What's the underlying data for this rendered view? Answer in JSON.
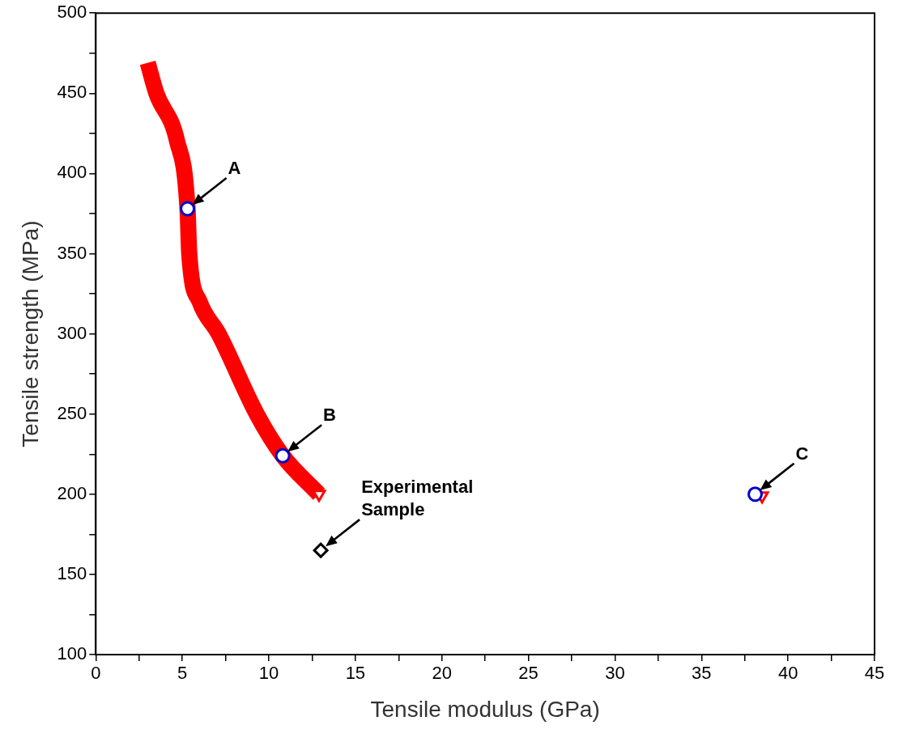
{
  "chart_data": {
    "type": "scatter",
    "xlabel": "Tensile modulus (GPa)",
    "ylabel": "Tensile strength (MPa)",
    "xlim": [
      0,
      45
    ],
    "ylim": [
      100,
      500
    ],
    "xticks": [
      0,
      {
        "value": 2.5,
        "label": null
      },
      5,
      {
        "value": 7.5,
        "label": null
      },
      10,
      {
        "value": 12.5,
        "label": null
      },
      15,
      {
        "value": 17.5,
        "label": null
      },
      20,
      {
        "value": 22.5,
        "label": null
      },
      25,
      {
        "value": 27.5,
        "label": null
      },
      30,
      {
        "value": 32.5,
        "label": null
      },
      35,
      {
        "value": 37.5,
        "label": null
      },
      40,
      {
        "value": 42.5,
        "label": null
      },
      45
    ],
    "yticks": [
      100,
      {
        "value": 125,
        "label": null
      },
      150,
      {
        "value": 175,
        "label": null
      },
      200,
      {
        "value": 225,
        "label": null
      },
      250,
      {
        "value": 275,
        "label": null
      },
      300,
      {
        "value": 325,
        "label": null
      },
      350,
      {
        "value": 375,
        "label": null
      },
      400,
      {
        "value": 425,
        "label": null
      },
      450,
      {
        "value": 475,
        "label": null
      },
      500
    ],
    "grid": false,
    "legend": false,
    "series": [
      {
        "type": "line",
        "color": "#ff0000",
        "marker": "none",
        "x": [
          3.0,
          3.5,
          4.7,
          5.3,
          5.4,
          6.0,
          7.1,
          9.3,
          10.8,
          12.9
        ],
        "values": [
          469,
          450,
          420,
          378,
          350,
          320,
          300,
          250,
          224,
          200
        ]
      },
      {
        "type": "scatter",
        "color": "#ff0000",
        "marker": "triangle",
        "x": [
          12.9,
          38.5
        ],
        "values": [
          200,
          199
        ]
      },
      {
        "type": "scatter",
        "color": "#0000cc",
        "marker": "circle",
        "x": [
          5.3,
          10.8,
          38.1
        ],
        "values": [
          378,
          224,
          200
        ]
      },
      {
        "type": "scatter",
        "color": "#000000",
        "marker": "diamond",
        "x": [
          13.0
        ],
        "values": [
          165
        ]
      }
    ],
    "annotations": [
      {
        "text": "A",
        "x": 5.3,
        "y": 378
      },
      {
        "text": "B",
        "x": 10.8,
        "y": 224
      },
      {
        "text": "C",
        "x": 38.1,
        "y": 200
      },
      {
        "text": "Experimental Sample",
        "x": 13.0,
        "y": 165
      }
    ]
  }
}
